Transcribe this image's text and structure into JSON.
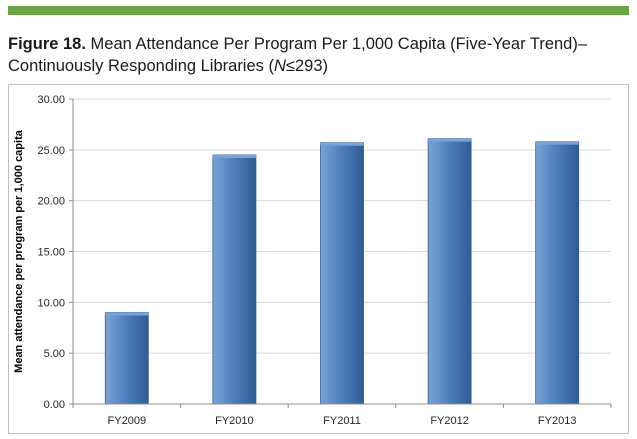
{
  "figure": {
    "label": "Figure 18.",
    "title_part1": " Mean Attendance Per Program Per 1,000 Capita (Five-Year Trend)–",
    "title_part2": "Continuously Responding Libraries (",
    "title_italic": "N",
    "title_part3": "≤293)"
  },
  "colors": {
    "top_rule": "#6aa343",
    "bar_fill": "#4f81bd",
    "bar_dark": "#2f5c94",
    "bar_light": "#7ba3d6",
    "gridline": "#d9d9d9",
    "axis": "#8c8c8c"
  },
  "chart_data": {
    "type": "bar",
    "title": "",
    "xlabel": "",
    "ylabel": "Mean attendance per program per 1,000 capita",
    "categories": [
      "FY2009",
      "FY2010",
      "FY2011",
      "FY2012",
      "FY2013"
    ],
    "values": [
      9.0,
      24.5,
      25.7,
      26.1,
      25.8
    ],
    "ylim": [
      0,
      30
    ],
    "yticks": [
      "0.00",
      "5.00",
      "10.00",
      "15.00",
      "20.00",
      "25.00",
      "30.00"
    ],
    "grid": true,
    "legend": "none"
  }
}
